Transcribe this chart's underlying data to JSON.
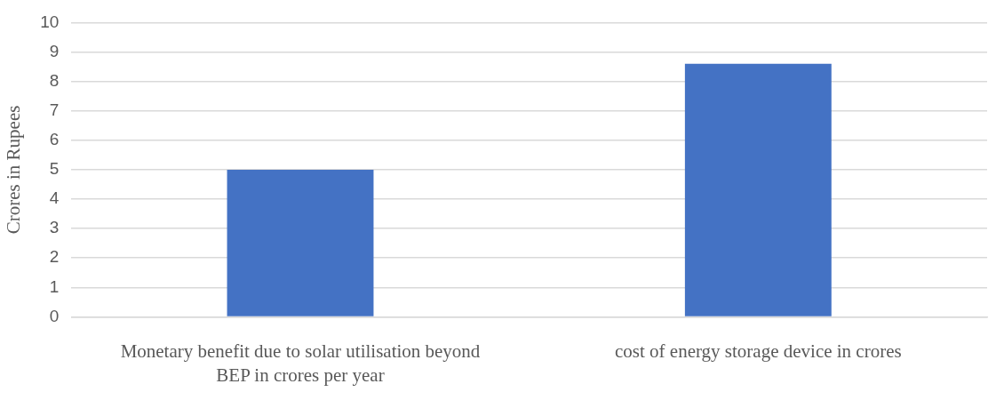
{
  "chart_data": {
    "type": "bar",
    "ylabel": "Crores in Rupees",
    "categories": [
      "Monetary benefit due to solar utilisation beyond BEP in crores per year",
      "cost of energy storage device in crores"
    ],
    "values": [
      5.0,
      8.6
    ],
    "color": "#4472c4",
    "ylim": [
      0,
      10
    ],
    "yticks": [
      0,
      1,
      2,
      3,
      4,
      5,
      6,
      7,
      8,
      9,
      10
    ],
    "grid": "y"
  }
}
